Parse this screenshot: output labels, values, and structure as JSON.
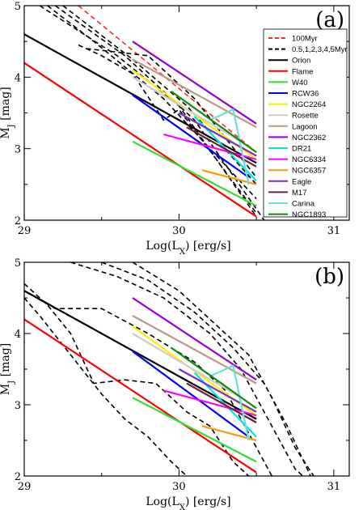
{
  "chart_data": [
    {
      "type": "line",
      "panel_label": "(a)",
      "xlabel": "Log(L_X) [erg/s]",
      "ylabel": "M_J [mag]",
      "xlim": [
        29,
        31.1
      ],
      "ylim": [
        2,
        5
      ],
      "x_ticks": [
        "29",
        "30",
        "31"
      ],
      "y_ticks": [
        "2",
        "3",
        "4",
        "5"
      ],
      "legend_position": "top-right",
      "legend": [
        {
          "label": "100Myr",
          "color": "#ff2a2a",
          "dash": true
        },
        {
          "label": "0.5,1,2,3,4,5Myr",
          "color": "#000000",
          "dash": true
        },
        {
          "label": "Orion",
          "color": "#000000",
          "dash": false
        },
        {
          "label": "Flame",
          "color": "#ff0000",
          "dash": false
        },
        {
          "label": "W40",
          "color": "#33dd33",
          "dash": false
        },
        {
          "label": "RCW36",
          "color": "#0000ff",
          "dash": false
        },
        {
          "label": "NGC2264",
          "color": "#ffee00",
          "dash": false
        },
        {
          "label": "Rosette",
          "color": "#cccccc",
          "dash": false
        },
        {
          "label": "Lagoon",
          "color": "#b89a8a",
          "dash": false
        },
        {
          "label": "NGC2362",
          "color": "#9400d3",
          "dash": false
        },
        {
          "label": "DR21",
          "color": "#00e5e5",
          "dash": false
        },
        {
          "label": "NGC6334",
          "color": "#ff00ff",
          "dash": false
        },
        {
          "label": "NGC6357",
          "color": "#ff9900",
          "dash": false
        },
        {
          "label": "Eagle",
          "color": "#7b2fbf",
          "dash": false
        },
        {
          "label": "M17",
          "color": "#6b1f3a",
          "dash": false
        },
        {
          "label": "Carina",
          "color": "#66e0e0",
          "dash": false
        },
        {
          "label": "NGC1893",
          "color": "#108a10",
          "dash": false
        }
      ],
      "series": [
        {
          "name": "100Myr",
          "color": "#ff2a2a",
          "dash": true,
          "points": [
            [
              29.35,
              5.0
            ],
            [
              30.5,
              2.95
            ]
          ]
        },
        {
          "color": "#000000",
          "dash": true,
          "points": [
            [
              29.1,
              5.0
            ],
            [
              29.6,
              4.3
            ],
            [
              30.0,
              3.6
            ],
            [
              30.5,
              2.05
            ]
          ]
        },
        {
          "color": "#000000",
          "dash": true,
          "points": [
            [
              29.2,
              5.0
            ],
            [
              29.65,
              4.3
            ],
            [
              30.1,
              3.4
            ],
            [
              30.55,
              2.0
            ]
          ]
        },
        {
          "color": "#000000",
          "dash": true,
          "points": [
            [
              29.25,
              5.0
            ],
            [
              29.7,
              4.25
            ],
            [
              30.05,
              3.6
            ],
            [
              30.5,
              2.5
            ]
          ]
        },
        {
          "color": "#000000",
          "dash": true,
          "points": [
            [
              29.15,
              5.0
            ],
            [
              29.45,
              4.5
            ],
            [
              29.9,
              3.7
            ],
            [
              30.5,
              2.3
            ]
          ]
        },
        {
          "color": "#000000",
          "dash": true,
          "points": [
            [
              29.35,
              4.45
            ],
            [
              29.5,
              4.3
            ],
            [
              29.7,
              4.05
            ],
            [
              29.9,
              3.4
            ],
            [
              30.0,
              3.55
            ],
            [
              30.5,
              2.1
            ]
          ]
        },
        {
          "color": "#000000",
          "dash": true,
          "points": [
            [
              29.4,
              4.4
            ],
            [
              29.8,
              4.3
            ],
            [
              30.1,
              3.7
            ],
            [
              30.5,
              2.6
            ]
          ]
        },
        {
          "name": "Orion",
          "color": "#000000",
          "dash": false,
          "points": [
            [
              29.0,
              4.6
            ],
            [
              30.5,
              2.8
            ]
          ]
        },
        {
          "name": "Flame",
          "color": "#ff0000",
          "dash": false,
          "points": [
            [
              29.0,
              4.2
            ],
            [
              30.5,
              2.05
            ]
          ]
        },
        {
          "name": "W40",
          "color": "#33dd33",
          "dash": false,
          "points": [
            [
              29.7,
              3.1
            ],
            [
              30.5,
              2.2
            ]
          ]
        },
        {
          "name": "RCW36",
          "color": "#0000ff",
          "dash": false,
          "points": [
            [
              29.7,
              3.75
            ],
            [
              30.45,
              2.6
            ]
          ]
        },
        {
          "name": "NGC2264",
          "color": "#ffee00",
          "dash": false,
          "points": [
            [
              29.7,
              4.1
            ],
            [
              30.5,
              2.85
            ]
          ]
        },
        {
          "name": "Rosette",
          "color": "#cccccc",
          "dash": false,
          "points": [
            [
              29.7,
              4.0
            ],
            [
              30.4,
              3.1
            ]
          ]
        },
        {
          "name": "Lagoon",
          "color": "#b89a8a",
          "dash": false,
          "points": [
            [
              29.7,
              4.25
            ],
            [
              30.5,
              3.3
            ]
          ]
        },
        {
          "name": "NGC2362",
          "color": "#9400d3",
          "dash": false,
          "points": [
            [
              29.7,
              4.5
            ],
            [
              30.5,
              3.35
            ]
          ]
        },
        {
          "name": "DR21",
          "color": "#00e5e5",
          "dash": false,
          "points": [
            [
              30.1,
              3.45
            ],
            [
              30.5,
              2.55
            ]
          ]
        },
        {
          "name": "NGC6334",
          "color": "#ff00ff",
          "dash": false,
          "points": [
            [
              29.9,
              3.2
            ],
            [
              30.5,
              2.85
            ]
          ]
        },
        {
          "name": "NGC6357",
          "color": "#ff9900",
          "dash": false,
          "points": [
            [
              30.15,
              2.7
            ],
            [
              30.5,
              2.5
            ]
          ]
        },
        {
          "name": "Eagle",
          "color": "#7b2fbf",
          "dash": false,
          "points": [
            [
              30.0,
              3.5
            ],
            [
              30.5,
              2.9
            ]
          ]
        },
        {
          "name": "M17",
          "color": "#6b1f3a",
          "dash": false,
          "points": [
            [
              30.05,
              3.3
            ],
            [
              30.5,
              2.75
            ]
          ]
        },
        {
          "name": "Carina",
          "color": "#66e0e0",
          "dash": false,
          "points": [
            [
              30.2,
              3.4
            ],
            [
              30.35,
              3.55
            ],
            [
              30.45,
              2.5
            ]
          ]
        },
        {
          "name": "NGC1893",
          "color": "#108a10",
          "dash": false,
          "points": [
            [
              29.95,
              3.8
            ],
            [
              30.5,
              2.95
            ]
          ]
        }
      ]
    },
    {
      "type": "line",
      "panel_label": "(b)",
      "xlabel": "Log(L_X) [erg/s]",
      "ylabel": "M_J [mag]",
      "xlim": [
        29,
        31.1
      ],
      "ylim": [
        2,
        5
      ],
      "x_ticks": [
        "29",
        "30",
        "31"
      ],
      "y_ticks": [
        "2",
        "3",
        "4",
        "5"
      ],
      "series": [
        {
          "color": "#000000",
          "dash": true,
          "points": [
            [
              29.0,
              4.5
            ],
            [
              29.1,
              4.25
            ],
            [
              29.3,
              3.7
            ],
            [
              29.5,
              3.15
            ],
            [
              29.65,
              2.8
            ],
            [
              29.8,
              2.55
            ],
            [
              29.95,
              2.2
            ],
            [
              30.05,
              2.0
            ]
          ]
        },
        {
          "color": "#000000",
          "dash": true,
          "points": [
            [
              29.0,
              4.7
            ],
            [
              29.15,
              4.4
            ],
            [
              29.3,
              4.0
            ],
            [
              29.45,
              3.3
            ],
            [
              29.65,
              3.35
            ],
            [
              29.85,
              3.3
            ],
            [
              30.05,
              2.9
            ],
            [
              30.2,
              2.7
            ],
            [
              30.35,
              2.2
            ],
            [
              30.45,
              2.0
            ]
          ]
        },
        {
          "color": "#000000",
          "dash": true,
          "points": [
            [
              29.0,
              4.6
            ],
            [
              29.2,
              4.35
            ],
            [
              29.5,
              4.35
            ],
            [
              29.8,
              4.0
            ],
            [
              30.1,
              3.6
            ],
            [
              30.3,
              3.2
            ],
            [
              30.45,
              2.6
            ],
            [
              30.6,
              2.0
            ]
          ]
        },
        {
          "color": "#000000",
          "dash": true,
          "points": [
            [
              29.3,
              5.0
            ],
            [
              29.6,
              4.8
            ],
            [
              29.9,
              4.5
            ],
            [
              30.2,
              4.0
            ],
            [
              30.4,
              3.5
            ],
            [
              30.55,
              2.9
            ],
            [
              30.75,
              2.1
            ],
            [
              30.8,
              2.0
            ]
          ]
        },
        {
          "color": "#000000",
          "dash": true,
          "points": [
            [
              29.5,
              5.0
            ],
            [
              29.8,
              4.75
            ],
            [
              30.1,
              4.3
            ],
            [
              30.35,
              3.8
            ],
            [
              30.55,
              3.3
            ],
            [
              30.7,
              2.7
            ],
            [
              30.85,
              2.0
            ]
          ]
        },
        {
          "color": "#000000",
          "dash": true,
          "points": [
            [
              29.7,
              5.0
            ],
            [
              30.0,
              4.6
            ],
            [
              30.25,
              4.1
            ],
            [
              30.45,
              3.7
            ],
            [
              30.6,
              3.1
            ],
            [
              30.75,
              2.4
            ],
            [
              30.87,
              2.0
            ]
          ]
        },
        {
          "name": "Orion",
          "color": "#000000",
          "dash": false,
          "points": [
            [
              29.0,
              4.6
            ],
            [
              30.5,
              2.8
            ]
          ]
        },
        {
          "name": "Flame",
          "color": "#ff0000",
          "dash": false,
          "points": [
            [
              29.0,
              4.2
            ],
            [
              30.5,
              2.05
            ]
          ]
        },
        {
          "name": "W40",
          "color": "#33dd33",
          "dash": false,
          "points": [
            [
              29.7,
              3.1
            ],
            [
              30.5,
              2.2
            ]
          ]
        },
        {
          "name": "RCW36",
          "color": "#0000ff",
          "dash": false,
          "points": [
            [
              29.7,
              3.75
            ],
            [
              30.45,
              2.55
            ]
          ]
        },
        {
          "name": "NGC2264",
          "color": "#ffee00",
          "dash": false,
          "points": [
            [
              29.7,
              4.1
            ],
            [
              30.5,
              2.85
            ]
          ]
        },
        {
          "name": "Rosette",
          "color": "#cccccc",
          "dash": false,
          "points": [
            [
              29.7,
              4.0
            ],
            [
              30.4,
              3.1
            ]
          ]
        },
        {
          "name": "Lagoon",
          "color": "#b89a8a",
          "dash": false,
          "points": [
            [
              29.7,
              4.25
            ],
            [
              30.5,
              3.3
            ]
          ]
        },
        {
          "name": "NGC2362",
          "color": "#9400d3",
          "dash": false,
          "points": [
            [
              29.7,
              4.5
            ],
            [
              30.5,
              3.35
            ]
          ]
        },
        {
          "name": "DR21",
          "color": "#00e5e5",
          "dash": false,
          "points": [
            [
              30.1,
              3.45
            ],
            [
              30.5,
              2.55
            ]
          ]
        },
        {
          "name": "NGC6334",
          "color": "#ff00ff",
          "dash": false,
          "points": [
            [
              29.9,
              3.2
            ],
            [
              30.5,
              2.85
            ]
          ]
        },
        {
          "name": "NGC6357",
          "color": "#ff9900",
          "dash": false,
          "points": [
            [
              30.15,
              2.7
            ],
            [
              30.5,
              2.5
            ]
          ]
        },
        {
          "name": "Eagle",
          "color": "#7b2fbf",
          "dash": false,
          "points": [
            [
              30.0,
              3.5
            ],
            [
              30.5,
              2.9
            ]
          ]
        },
        {
          "name": "M17",
          "color": "#6b1f3a",
          "dash": false,
          "points": [
            [
              30.05,
              3.3
            ],
            [
              30.5,
              2.75
            ]
          ]
        },
        {
          "name": "Carina",
          "color": "#66e0e0",
          "dash": false,
          "points": [
            [
              30.2,
              3.4
            ],
            [
              30.35,
              3.55
            ],
            [
              30.45,
              2.5
            ]
          ]
        },
        {
          "name": "NGC1893",
          "color": "#108a10",
          "dash": false,
          "points": [
            [
              29.95,
              3.8
            ],
            [
              30.5,
              2.95
            ]
          ]
        }
      ]
    }
  ]
}
